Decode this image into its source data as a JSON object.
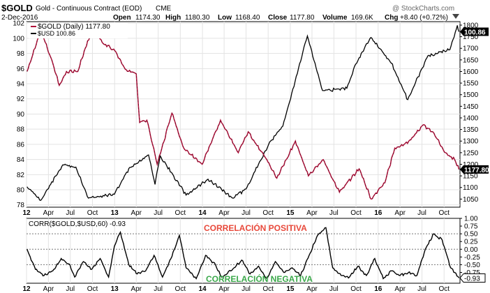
{
  "header": {
    "symbol": "$GOLD",
    "description": "Gold - Continuous Contract (EOD)",
    "exchange": "CME",
    "date": "2-Dec-2016",
    "open_label": "Open",
    "open": "1174.30",
    "high_label": "High",
    "high": "1180.30",
    "low_label": "Low",
    "low": "1168.40",
    "close_label": "Close",
    "close": "1177.80",
    "volume_label": "Volume",
    "volume": "169.6K",
    "chg_label": "Chg",
    "chg": "+8.40 (+0.72%)",
    "watermark": "@ StockCharts.com"
  },
  "colors": {
    "gold_series": "#b0103a",
    "usd_series": "#000000",
    "positive_text": "#e8483a",
    "negative_text": "#3aa84a",
    "last_label_bg": "#000000"
  },
  "chart_data": [
    {
      "type": "line",
      "legend": [
        "$GOLD (Daily) 1177.80",
        "$USD 100.86"
      ],
      "x_ticks": [
        "12",
        "Apr",
        "Jul",
        "Oct",
        "13",
        "Apr",
        "Jul",
        "Oct",
        "14",
        "Apr",
        "Jul",
        "Oct",
        "15",
        "Apr",
        "Jul",
        "Oct",
        "16",
        "Apr",
        "Jul",
        "Oct"
      ],
      "left_axis": {
        "ticks": [
          78,
          80,
          82,
          84,
          86,
          88,
          90,
          92,
          94,
          96,
          98,
          100,
          102
        ],
        "ylim": [
          77.7,
          102.2
        ]
      },
      "right_axis": {
        "ticks": [
          1050,
          1100,
          1150,
          1200,
          1250,
          1300,
          1350,
          1400,
          1450,
          1500,
          1550,
          1600,
          1650,
          1700,
          1750,
          1800
        ],
        "ylim": [
          1015,
          1815
        ]
      },
      "last_values": {
        "usd": "100.86",
        "gold": "1177.80"
      },
      "series": [
        {
          "name": "$GOLD (Daily) 1177.80",
          "axis": "right",
          "x": [
            "2012-01-03",
            "2012-02-29",
            "2012-04-15",
            "2012-05-16",
            "2012-06-15",
            "2012-08-01",
            "2012-09-01",
            "2012-10-05",
            "2012-11-15",
            "2013-01-02",
            "2013-02-14",
            "2013-04-01",
            "2013-04-15",
            "2013-05-15",
            "2013-06-27",
            "2013-08-27",
            "2013-10-15",
            "2013-12-31",
            "2014-03-17",
            "2014-05-30",
            "2014-07-10",
            "2014-09-30",
            "2014-11-06",
            "2014-12-15",
            "2015-01-22",
            "2015-03-17",
            "2015-05-18",
            "2015-07-24",
            "2015-10-14",
            "2015-12-03",
            "2016-01-29",
            "2016-03-10",
            "2016-05-02",
            "2016-07-06",
            "2016-08-15",
            "2016-10-07",
            "2016-11-14",
            "2016-12-02"
          ],
          "y": [
            1600,
            1780,
            1650,
            1540,
            1600,
            1600,
            1700,
            1790,
            1720,
            1690,
            1610,
            1590,
            1380,
            1390,
            1200,
            1420,
            1270,
            1200,
            1390,
            1250,
            1340,
            1210,
            1140,
            1220,
            1300,
            1150,
            1220,
            1080,
            1180,
            1050,
            1120,
            1270,
            1290,
            1370,
            1340,
            1250,
            1220,
            1177.8
          ]
        },
        {
          "name": "$USD 100.86",
          "axis": "left",
          "x": [
            "2012-01-03",
            "2012-02-29",
            "2012-05-31",
            "2012-07-24",
            "2012-09-14",
            "2012-12-31",
            "2013-03-01",
            "2013-05-22",
            "2013-06-18",
            "2013-07-09",
            "2013-10-25",
            "2014-01-24",
            "2014-05-06",
            "2014-07-01",
            "2014-10-03",
            "2014-12-01",
            "2015-03-13",
            "2015-05-15",
            "2015-08-24",
            "2015-09-30",
            "2015-12-02",
            "2016-02-25",
            "2016-05-03",
            "2016-07-26",
            "2016-10-25",
            "2016-11-25",
            "2016-12-02"
          ],
          "y": [
            80.4,
            78.6,
            83.3,
            83.0,
            78.9,
            79.4,
            82.8,
            84.6,
            80.7,
            84.5,
            79.3,
            81.4,
            78.9,
            80.1,
            86.0,
            88.4,
            100.3,
            93.1,
            93.4,
            96.6,
            100.1,
            96.7,
            91.9,
            97.7,
            98.5,
            101.7,
            100.86
          ]
        }
      ]
    },
    {
      "type": "line",
      "legend": [
        "CORR($GOLD,$USD,60) -0.93"
      ],
      "x_ticks": [
        "12",
        "Apr",
        "Jul",
        "Oct",
        "13",
        "Apr",
        "Jul",
        "Oct",
        "14",
        "Apr",
        "Jul",
        "Oct",
        "15",
        "Apr",
        "Jul",
        "Oct",
        "16",
        "Apr",
        "Jul",
        "Oct"
      ],
      "y_ticks": [
        "1.00",
        "0.75",
        "0.50",
        "0.25",
        "0.00",
        "-0.25",
        "-0.50",
        "-0.75"
      ],
      "ylim": [
        -1.1,
        1.0
      ],
      "reference_lines": [
        0.5,
        0.0,
        -0.5
      ],
      "last_value": "-0.93",
      "annotations": [
        "CORRELACIÓN POSITIVA",
        "CORRELACIÓN NEGATIVA"
      ],
      "series": [
        {
          "name": "CORR($GOLD,$USD,60) -0.93",
          "x": [
            "2012-01-03",
            "2012-02-07",
            "2012-03-14",
            "2012-04-19",
            "2012-05-24",
            "2012-06-29",
            "2012-07-19",
            "2012-08-24",
            "2012-09-28",
            "2012-11-02",
            "2012-12-07",
            "2012-12-31",
            "2013-01-25",
            "2013-03-01",
            "2013-04-05",
            "2013-05-10",
            "2013-06-14",
            "2013-07-19",
            "2013-08-23",
            "2013-09-27",
            "2013-10-25",
            "2013-12-06",
            "2014-01-14",
            "2014-02-24",
            "2014-03-21",
            "2014-04-29",
            "2014-06-13",
            "2014-07-18",
            "2014-08-22",
            "2014-09-26",
            "2014-10-31",
            "2014-12-05",
            "2015-01-09",
            "2015-02-13",
            "2015-03-20",
            "2015-04-24",
            "2015-05-29",
            "2015-06-26",
            "2015-07-31",
            "2015-09-04",
            "2015-10-09",
            "2015-11-13",
            "2015-12-18",
            "2016-01-22",
            "2016-02-26",
            "2016-04-01",
            "2016-05-06",
            "2016-06-10",
            "2016-07-15",
            "2016-08-19",
            "2016-09-23",
            "2016-10-28",
            "2016-12-02"
          ],
          "y": [
            0.0,
            -0.65,
            -0.85,
            -0.7,
            -0.3,
            -0.5,
            -0.9,
            -0.4,
            -0.65,
            -0.3,
            -0.9,
            0.1,
            0.55,
            -0.5,
            -0.8,
            -0.7,
            -0.2,
            -0.9,
            -0.3,
            0.45,
            -0.6,
            -0.95,
            -0.2,
            -0.5,
            -0.9,
            -0.7,
            -0.35,
            -0.8,
            -0.55,
            -0.95,
            -0.4,
            -0.75,
            -0.6,
            -0.85,
            -0.2,
            0.45,
            0.7,
            -0.6,
            -0.85,
            -0.9,
            -0.55,
            -0.85,
            -0.3,
            -0.95,
            -0.7,
            -0.85,
            -0.75,
            -0.85,
            0.0,
            0.5,
            0.3,
            -0.6,
            -0.93
          ]
        }
      ]
    }
  ]
}
